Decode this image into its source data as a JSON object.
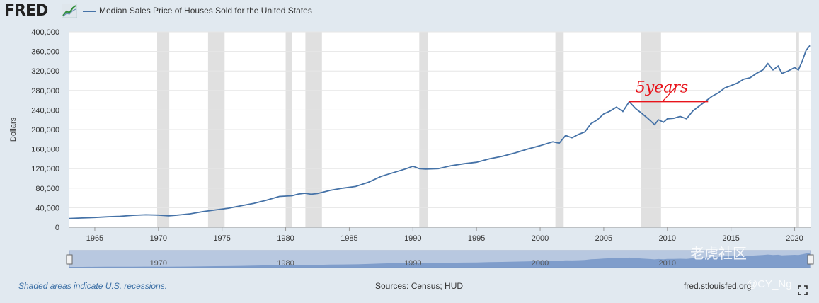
{
  "header": {
    "logo_text": "FRED",
    "logo_icon": "line-chart-icon",
    "series_title": "Median Sales Price of Houses Sold for the United States"
  },
  "footer": {
    "note": "Shaded areas indicate U.S. recessions.",
    "sources": "Sources: Census; HUD",
    "site": "fred.stlouisfed.org",
    "expand_icon": "fullscreen-icon"
  },
  "watermark": {
    "text": "老虎社区",
    "user": "@CY_Ng"
  },
  "annotation": {
    "text": "5years",
    "color": "#e8141b",
    "from_year": 2007.0,
    "to_year": 2013.2,
    "level": 257000
  },
  "colors": {
    "line": "#4572a7",
    "recession": "#e0e0e0",
    "background": "#e1e9f0",
    "plot": "#ffffff"
  },
  "navigator": {
    "labels": [
      "1970",
      "1980",
      "1990",
      "2000",
      "2010"
    ]
  },
  "chart_data": {
    "type": "line",
    "title": "Median Sales Price of Houses Sold for the United States",
    "xlabel": "",
    "ylabel": "Dollars",
    "xlim": [
      1963.0,
      2021.25
    ],
    "ylim": [
      0,
      400000
    ],
    "yticks": [
      0,
      40000,
      80000,
      120000,
      160000,
      200000,
      240000,
      280000,
      320000,
      360000,
      400000
    ],
    "ytick_labels": [
      "0",
      "40,000",
      "80,000",
      "120,000",
      "160,000",
      "200,000",
      "240,000",
      "280,000",
      "320,000",
      "360,000",
      "400,000"
    ],
    "xticks": [
      1965,
      1970,
      1975,
      1980,
      1985,
      1990,
      1995,
      2000,
      2005,
      2010,
      2015,
      2020
    ],
    "grid": true,
    "legend": "top-left",
    "recessions": [
      [
        1969.9,
        1970.85
      ],
      [
        1973.9,
        1975.2
      ],
      [
        1980.0,
        1980.5
      ],
      [
        1981.55,
        1982.85
      ],
      [
        1990.5,
        1991.2
      ],
      [
        2001.2,
        2001.85
      ],
      [
        2007.95,
        2009.5
      ],
      [
        2020.1,
        2020.35
      ]
    ],
    "series": [
      {
        "name": "Median Sales Price of Houses Sold for the United States",
        "x": [
          1963.0,
          1964.0,
          1965.0,
          1966.0,
          1967.0,
          1968.0,
          1969.0,
          1970.0,
          1970.8,
          1971.5,
          1972.5,
          1973.5,
          1974.5,
          1975.5,
          1976.5,
          1977.5,
          1978.5,
          1979.5,
          1980.5,
          1981.0,
          1981.5,
          1982.0,
          1982.5,
          1983.5,
          1984.5,
          1985.5,
          1986.5,
          1987.5,
          1988.5,
          1989.5,
          1990.0,
          1990.5,
          1991.0,
          1992.0,
          1993.0,
          1994.0,
          1995.0,
          1996.0,
          1997.0,
          1998.0,
          1999.0,
          2000.0,
          2001.0,
          2001.5,
          2002.0,
          2002.5,
          2003.0,
          2003.5,
          2004.0,
          2004.5,
          2005.0,
          2005.5,
          2006.0,
          2006.5,
          2007.0,
          2007.5,
          2008.0,
          2008.5,
          2009.0,
          2009.3,
          2009.7,
          2010.0,
          2010.5,
          2011.0,
          2011.5,
          2012.0,
          2012.5,
          2013.0,
          2013.5,
          2014.0,
          2014.5,
          2015.0,
          2015.5,
          2016.0,
          2016.5,
          2017.0,
          2017.5,
          2017.9,
          2018.3,
          2018.7,
          2019.0,
          2019.5,
          2020.0,
          2020.3,
          2020.6,
          2020.9,
          2021.2
        ],
        "values": [
          18000,
          19000,
          20000,
          21500,
          22500,
          24500,
          25500,
          25000,
          23500,
          25000,
          27500,
          32000,
          35500,
          39000,
          44000,
          49000,
          55500,
          63000,
          64500,
          68000,
          69500,
          67500,
          69000,
          75500,
          80000,
          83500,
          92000,
          104000,
          112000,
          120000,
          125000,
          120000,
          119000,
          120000,
          126000,
          130000,
          133000,
          140000,
          145000,
          152000,
          160000,
          167000,
          175000,
          172000,
          188000,
          183000,
          190000,
          195000,
          212000,
          220000,
          232000,
          238000,
          246000,
          237000,
          257000,
          243000,
          233000,
          222000,
          210000,
          220000,
          215000,
          222000,
          223000,
          227000,
          222000,
          238000,
          248000,
          258000,
          268000,
          275000,
          285000,
          290000,
          295000,
          303000,
          306000,
          315000,
          322000,
          335000,
          322000,
          330000,
          315000,
          320000,
          327000,
          322000,
          340000,
          362000,
          372000
        ]
      }
    ]
  }
}
